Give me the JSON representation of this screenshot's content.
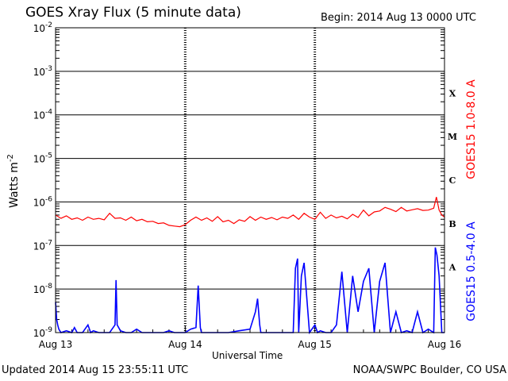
{
  "header": {
    "title": "GOES Xray Flux (5 minute data)",
    "begin": "Begin:  2014 Aug 13 0000 UTC"
  },
  "footer": {
    "updated": "Updated 2014 Aug 15 23:55:11 UTC",
    "credit": "NOAA/SWPC Boulder, CO USA"
  },
  "chart_data": {
    "type": "line",
    "title": "GOES Xray Flux (5 minute data)",
    "xlabel": "Universal Time",
    "ylabel": "Watts m",
    "ylabel_superscript": "-2",
    "yscale": "log",
    "ylim": [
      1e-09,
      0.01
    ],
    "xlim": [
      0,
      72
    ],
    "x_unit": "hours since 2014 Aug 13 0000 UTC",
    "y_ticks": [
      {
        "value": 0.01,
        "base": "10",
        "exp": "-2"
      },
      {
        "value": 0.001,
        "base": "10",
        "exp": "-3"
      },
      {
        "value": 0.0001,
        "base": "10",
        "exp": "-4"
      },
      {
        "value": 1e-05,
        "base": "10",
        "exp": "-5"
      },
      {
        "value": 1e-06,
        "base": "10",
        "exp": "-6"
      },
      {
        "value": 1e-07,
        "base": "10",
        "exp": "-7"
      },
      {
        "value": 1e-08,
        "base": "10",
        "exp": "-8"
      },
      {
        "value": 1e-09,
        "base": "10",
        "exp": "-9"
      }
    ],
    "x_ticks": [
      {
        "value": 0,
        "label": "Aug 13"
      },
      {
        "value": 24,
        "label": "Aug 14"
      },
      {
        "value": 48,
        "label": "Aug 15"
      },
      {
        "value": 72,
        "label": "Aug 16"
      }
    ],
    "flare_classes": [
      {
        "label": "X",
        "value": 0.000316
      },
      {
        "label": "M",
        "value": 3.16e-05
      },
      {
        "label": "C",
        "value": 3.16e-06
      },
      {
        "label": "B",
        "value": 3.16e-07
      },
      {
        "label": "A",
        "value": 3.16e-08
      }
    ],
    "grid": true,
    "series": [
      {
        "name": "GOES15 1.0-8.0 A",
        "color": "#ff0000",
        "x": [
          0,
          1,
          2,
          3,
          4,
          5,
          6,
          7,
          8,
          9,
          10,
          11,
          12,
          13,
          14,
          15,
          16,
          17,
          18,
          19,
          20,
          21,
          22,
          23,
          24,
          25,
          26,
          27,
          28,
          29,
          30,
          31,
          32,
          33,
          34,
          35,
          36,
          37,
          38,
          39,
          40,
          41,
          42,
          43,
          44,
          45,
          46,
          47,
          48,
          49,
          50,
          51,
          52,
          53,
          54,
          55,
          56,
          57,
          58,
          59,
          60,
          61,
          62,
          63,
          64,
          65,
          66,
          67,
          68,
          69,
          70,
          70.5,
          71,
          71.5,
          72
        ],
        "y": [
          5e-07,
          4.2e-07,
          4.8e-07,
          4e-07,
          4.3e-07,
          3.8e-07,
          4.5e-07,
          4e-07,
          4.2e-07,
          3.9e-07,
          5.5e-07,
          4.2e-07,
          4.3e-07,
          3.8e-07,
          4.5e-07,
          3.7e-07,
          4e-07,
          3.5e-07,
          3.6e-07,
          3.2e-07,
          3.3e-07,
          2.9e-07,
          2.8e-07,
          2.7e-07,
          3e-07,
          3.8e-07,
          4.5e-07,
          3.8e-07,
          4.3e-07,
          3.6e-07,
          4.6e-07,
          3.5e-07,
          3.8e-07,
          3.2e-07,
          3.9e-07,
          3.6e-07,
          4.6e-07,
          3.8e-07,
          4.5e-07,
          4e-07,
          4.4e-07,
          3.9e-07,
          4.5e-07,
          4.2e-07,
          5e-07,
          4e-07,
          5.5e-07,
          4.5e-07,
          4e-07,
          5.8e-07,
          4.2e-07,
          5e-07,
          4.3e-07,
          4.7e-07,
          4.1e-07,
          5.2e-07,
          4.4e-07,
          6.5e-07,
          4.8e-07,
          5.9e-07,
          6.2e-07,
          7.5e-07,
          6.8e-07,
          6e-07,
          7.5e-07,
          6.2e-07,
          6.6e-07,
          7e-07,
          6.4e-07,
          6.5e-07,
          7.2e-07,
          1.3e-06,
          6.5e-07,
          5e-07,
          4.5e-07
        ]
      },
      {
        "name": "GOES15 0.5-4.0 A",
        "color": "#0000ff",
        "x": [
          0,
          0.2,
          0.4,
          0.6,
          1,
          2,
          3,
          3.5,
          4,
          5,
          6,
          6.5,
          7,
          8,
          10,
          11,
          11.2,
          11.4,
          12,
          13,
          14,
          15,
          16,
          18,
          19,
          20,
          21,
          22,
          24,
          25,
          26,
          26.4,
          26.8,
          27,
          28,
          30,
          32,
          34,
          36,
          37,
          37.4,
          37.8,
          38,
          40,
          42,
          43,
          44,
          44.4,
          44.8,
          45,
          45.5,
          46,
          47,
          48,
          48.5,
          49,
          50,
          51,
          52,
          53,
          54,
          55,
          56,
          57,
          58,
          59,
          60,
          61,
          62,
          63,
          64,
          65,
          66,
          67,
          68,
          69,
          70,
          70.3,
          70.6,
          71,
          71.5,
          72
        ],
        "y": [
          5e-09,
          2e-09,
          1.5e-09,
          1.2e-09,
          1e-09,
          1.1e-09,
          1e-09,
          1.3e-09,
          1e-09,
          1e-09,
          1.5e-09,
          1e-09,
          1.1e-09,
          1e-09,
          1e-09,
          1.5e-09,
          1.6e-08,
          1.5e-09,
          1.1e-09,
          1e-09,
          1e-09,
          1.2e-09,
          1e-09,
          1e-09,
          1e-09,
          1e-09,
          1.1e-09,
          1e-09,
          1e-09,
          1.2e-09,
          1.3e-09,
          1.2e-08,
          1.3e-09,
          1e-09,
          1e-09,
          1e-09,
          1e-09,
          1.1e-09,
          1.2e-09,
          3e-09,
          6e-09,
          1.5e-09,
          1e-09,
          1e-09,
          1e-09,
          1e-09,
          1e-09,
          3e-08,
          5e-08,
          1e-09,
          2e-08,
          4e-08,
          1e-09,
          1.5e-09,
          1e-09,
          1.1e-09,
          1e-09,
          1e-09,
          1.5e-09,
          2.5e-08,
          1e-09,
          2e-08,
          3e-09,
          1.5e-08,
          3e-08,
          1e-09,
          1.5e-08,
          4e-08,
          1e-09,
          3e-09,
          1e-09,
          1.1e-09,
          1e-09,
          3e-09,
          1e-09,
          1.2e-09,
          1e-09,
          9e-08,
          6e-08,
          2e-08,
          1e-09,
          1e-09
        ]
      }
    ]
  }
}
